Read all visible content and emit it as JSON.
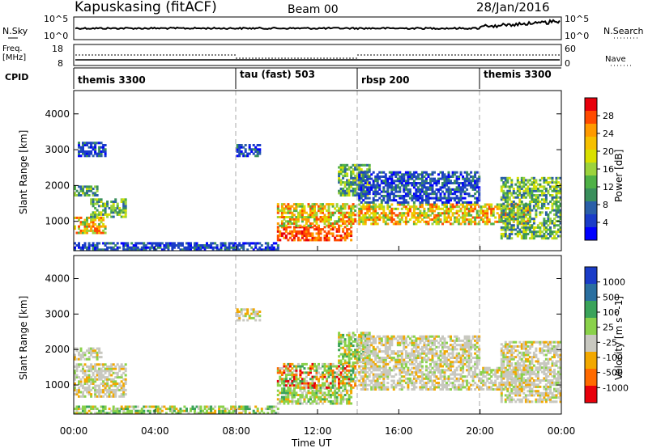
{
  "header": {
    "site": "Kapuskasing (fitACF)",
    "beam": "Beam 00",
    "date": "28/Jan/2016"
  },
  "sky_panel": {
    "left_label": "N.Sky",
    "left_ticks": [
      "10^5",
      "10^0"
    ],
    "right_label": "N.Search",
    "right_ticks": [
      "10^5",
      "10^0"
    ]
  },
  "freq_panel": {
    "left_label_line1": "Freq.",
    "left_label_line2": "[MHz]",
    "left_ticks": [
      "18",
      "8"
    ],
    "right_label": "Nave",
    "right_ticks": [
      "60",
      "0"
    ]
  },
  "cpid_panel": {
    "label": "CPID",
    "modes": [
      {
        "name": "themis 3300",
        "start_hour": 0
      },
      {
        "name": "tau (fast) 503",
        "start_hour": 8
      },
      {
        "name": "rbsp 200",
        "start_hour": 14
      },
      {
        "name": "themis 3300",
        "start_hour": 20
      }
    ]
  },
  "power_colorbar": {
    "label": "Power [dB]",
    "ticks": [
      "28",
      "24",
      "20",
      "16",
      "12",
      "8",
      "4"
    ],
    "colors": [
      "#e8000b",
      "#ff4a00",
      "#ff9a00",
      "#f6c000",
      "#d9e000",
      "#9cd33c",
      "#4fb146",
      "#3a8f5c",
      "#2a5fa8",
      "#1a3cc8",
      "#0000ff"
    ]
  },
  "velocity_colorbar": {
    "label": "Velocity [m s^-1]",
    "ticks": [
      "1000",
      "500",
      "100",
      "25",
      "-25",
      "-100",
      "-500",
      "-1000"
    ],
    "colors": [
      "#1a3cc8",
      "#2a6fa0",
      "#3aa35a",
      "#8ad24a",
      "#c8c8c0",
      "#f2a800",
      "#ff6a00",
      "#e8000b"
    ]
  },
  "chart_data": [
    {
      "type": "heatmap",
      "panel": "power",
      "ylabel": "Slant Range [km]",
      "yticks": [
        "4000",
        "3000",
        "2000",
        "1000"
      ],
      "ylim": [
        180,
        4650
      ],
      "xlim": [
        0,
        24
      ],
      "mode_boundaries_hours": [
        8,
        14,
        20
      ],
      "patches": [
        {
          "t0": 0.0,
          "t1": 1.6,
          "r0": 650,
          "r1": 1100,
          "level": "high"
        },
        {
          "t0": 0.0,
          "t1": 1.2,
          "r0": 1700,
          "r1": 2000,
          "level": "mid"
        },
        {
          "t0": 0.8,
          "t1": 2.6,
          "r0": 1100,
          "r1": 1600,
          "level": "mid"
        },
        {
          "t0": 0.2,
          "t1": 1.6,
          "r0": 2800,
          "r1": 3200,
          "level": "low"
        },
        {
          "t0": 8.0,
          "t1": 9.1,
          "r0": 2800,
          "r1": 3150,
          "level": "low"
        },
        {
          "t0": 10.0,
          "t1": 13.6,
          "r0": 450,
          "r1": 850,
          "level": "max"
        },
        {
          "t0": 10.0,
          "t1": 13.8,
          "r0": 850,
          "r1": 1500,
          "level": "high"
        },
        {
          "t0": 13.0,
          "t1": 14.5,
          "r0": 1700,
          "r1": 2600,
          "level": "mid"
        },
        {
          "t0": 14.0,
          "t1": 22.5,
          "r0": 900,
          "r1": 1500,
          "level": "high"
        },
        {
          "t0": 14.0,
          "t1": 20.0,
          "r0": 1500,
          "r1": 2400,
          "level": "low"
        },
        {
          "t0": 21.0,
          "t1": 24.0,
          "r0": 500,
          "r1": 2200,
          "level": "mid"
        },
        {
          "t0": 0.0,
          "t1": 10.0,
          "r0": 180,
          "r1": 420,
          "level": "low"
        }
      ]
    },
    {
      "type": "heatmap",
      "panel": "velocity",
      "ylabel": "Slant Range [km]",
      "yticks": [
        "4000",
        "3000",
        "2000",
        "1000"
      ],
      "ylim": [
        180,
        4650
      ],
      "xlim": [
        0,
        24
      ],
      "xlabel": "Time UT",
      "xticks": [
        "00:00",
        "04:00",
        "08:00",
        "12:00",
        "16:00",
        "20:00",
        "00:00"
      ],
      "mode_boundaries_hours": [
        8,
        14,
        20
      ],
      "patches": [
        {
          "t0": 0.0,
          "t1": 2.6,
          "r0": 650,
          "r1": 1600,
          "vel": "grey"
        },
        {
          "t0": 0.0,
          "t1": 1.4,
          "r0": 1700,
          "r1": 2050,
          "vel": "grey"
        },
        {
          "t0": 8.0,
          "t1": 9.1,
          "r0": 2800,
          "r1": 3150,
          "vel": "grey"
        },
        {
          "t0": 10.0,
          "t1": 13.6,
          "r0": 450,
          "r1": 900,
          "vel": "green"
        },
        {
          "t0": 10.0,
          "t1": 13.8,
          "r0": 900,
          "r1": 1600,
          "vel": "mixed"
        },
        {
          "t0": 13.0,
          "t1": 14.5,
          "r0": 1600,
          "r1": 2500,
          "vel": "green"
        },
        {
          "t0": 14.0,
          "t1": 22.5,
          "r0": 850,
          "r1": 1500,
          "vel": "grey"
        },
        {
          "t0": 14.0,
          "t1": 20.0,
          "r0": 1500,
          "r1": 2400,
          "vel": "grey"
        },
        {
          "t0": 21.0,
          "t1": 24.0,
          "r0": 500,
          "r1": 2200,
          "vel": "grey"
        },
        {
          "t0": 0.0,
          "t1": 10.0,
          "r0": 180,
          "r1": 420,
          "vel": "green"
        }
      ]
    }
  ]
}
